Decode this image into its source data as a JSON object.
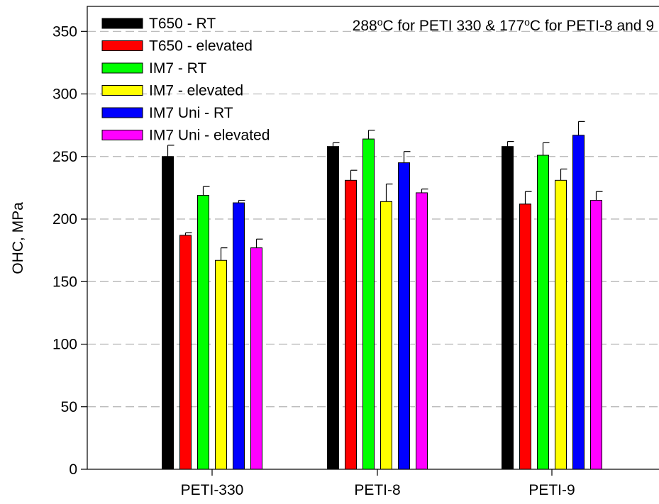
{
  "chart_data": {
    "type": "bar",
    "title": "",
    "xlabel": "",
    "ylabel": "OHC, MPa",
    "ylim": [
      0,
      370
    ],
    "yticks": [
      0,
      50,
      100,
      150,
      200,
      250,
      300,
      350
    ],
    "grid": true,
    "legend_position": "top-left",
    "annotation": {
      "parts": [
        "288",
        "o",
        "C for PETI 330 & 177",
        "o",
        "C for PETI-8 and 9"
      ]
    },
    "categories": [
      "PETI-330",
      "PETI-8",
      "PETI-9"
    ],
    "series": [
      {
        "name": "T650 - RT",
        "color": "#000000",
        "values": [
          250,
          258,
          258
        ],
        "errors": [
          9,
          3,
          4
        ]
      },
      {
        "name": "T650 - elevated",
        "color": "#ff0000",
        "values": [
          187,
          231,
          212
        ],
        "errors": [
          2,
          8,
          10
        ]
      },
      {
        "name": "IM7 - RT",
        "color": "#00ff00",
        "values": [
          219,
          264,
          251
        ],
        "errors": [
          7,
          7,
          10
        ]
      },
      {
        "name": "IM7 - elevated",
        "color": "#ffff00",
        "values": [
          167,
          214,
          231
        ],
        "errors": [
          10,
          14,
          9
        ]
      },
      {
        "name": "IM7 Uni - RT",
        "color": "#0000ff",
        "values": [
          213,
          245,
          267
        ],
        "errors": [
          2,
          9,
          11
        ]
      },
      {
        "name": "IM7 Uni - elevated",
        "color": "#ff00ff",
        "values": [
          177,
          221,
          215
        ],
        "errors": [
          7,
          3,
          7
        ]
      }
    ]
  }
}
